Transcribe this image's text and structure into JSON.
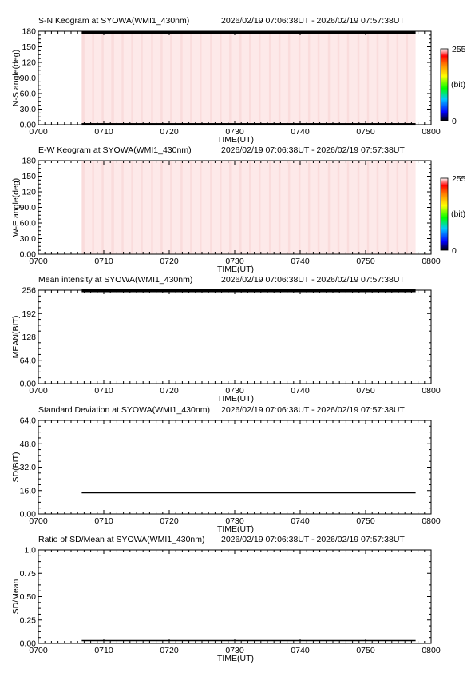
{
  "time_range_text": "2026/02/19 07:06:38UT - 2026/02/19 07:57:38UT",
  "colorbar": {
    "max_label": "255",
    "unit_label": "(bit)",
    "min_label": "0"
  },
  "x_ticks": [
    "0700",
    "0710",
    "0720",
    "0730",
    "0740",
    "0750",
    "0800"
  ],
  "colors": {
    "background": "#ffffff",
    "keogram_fill": "#fde9e9",
    "trace": "#000000"
  },
  "chart_data": [
    {
      "type": "heatmap",
      "title": "S-N Keogram at SYOWA(WMI1_430nm)",
      "xlabel": "TIME(UT)",
      "ylabel": "N-S angle(deg)",
      "x_ticks": [
        "0700",
        "0710",
        "0720",
        "0730",
        "0740",
        "0750",
        "0800"
      ],
      "y_ticks": [
        "180",
        "150",
        "120",
        "90.0",
        "60.0",
        "30.0",
        "0.00"
      ],
      "ylim": [
        0,
        180
      ],
      "data_start": "07:06:38",
      "data_end": "07:57:38",
      "value_range": [
        0,
        255
      ],
      "typical_value": 10,
      "saturated_rows_deg": [
        [
          0,
          3
        ],
        [
          177,
          180
        ]
      ],
      "colorbar": true
    },
    {
      "type": "heatmap",
      "title": "E-W Keogram at SYOWA(WMI1_430nm)",
      "xlabel": "TIME(UT)",
      "ylabel": "W-E angle(deg)",
      "x_ticks": [
        "0700",
        "0710",
        "0720",
        "0730",
        "0740",
        "0750",
        "0800"
      ],
      "y_ticks": [
        "180",
        "150",
        "120",
        "90.0",
        "60.0",
        "30.0",
        "0.00"
      ],
      "ylim": [
        0,
        180
      ],
      "data_start": "07:06:38",
      "data_end": "07:57:38",
      "value_range": [
        0,
        255
      ],
      "typical_value": 10,
      "colorbar": true
    },
    {
      "type": "line",
      "title": "Mean intensity at SYOWA(WMI1_430nm)",
      "xlabel": "TIME(UT)",
      "ylabel": "MEAN(BIT)",
      "x_ticks": [
        "0700",
        "0710",
        "0720",
        "0730",
        "0740",
        "0750",
        "0800"
      ],
      "y_ticks": [
        "256",
        "192",
        "128",
        "64.0",
        "0.00"
      ],
      "ylim": [
        0,
        256
      ],
      "x": [
        "07:06:38",
        "07:57:38"
      ],
      "y": [
        255,
        255
      ]
    },
    {
      "type": "line",
      "title": "Standard Deviation at SYOWA(WMI1_430nm)",
      "xlabel": "TIME(UT)",
      "ylabel": "SD(BIT)",
      "x_ticks": [
        "0700",
        "0710",
        "0720",
        "0730",
        "0740",
        "0750",
        "0800"
      ],
      "y_ticks": [
        "64.0",
        "48.0",
        "32.0",
        "16.0",
        "0.00"
      ],
      "ylim": [
        0,
        64
      ],
      "x": [
        "07:06:38",
        "07:57:38"
      ],
      "y": [
        14.5,
        14.5
      ]
    },
    {
      "type": "line",
      "title": "Ratio of SD/Mean at SYOWA(WMI1_430nm)",
      "xlabel": "TIME(UT)",
      "ylabel": "SD/Mean",
      "x_ticks": [
        "0700",
        "0710",
        "0720",
        "0730",
        "0740",
        "0750",
        "0800"
      ],
      "y_ticks": [
        "1.0",
        "0.75",
        "0.50",
        "0.25",
        "0.00"
      ],
      "ylim": [
        0,
        1
      ],
      "x": [
        "07:06:38",
        "07:57:38"
      ],
      "y": [
        0.03,
        0.03
      ]
    }
  ]
}
